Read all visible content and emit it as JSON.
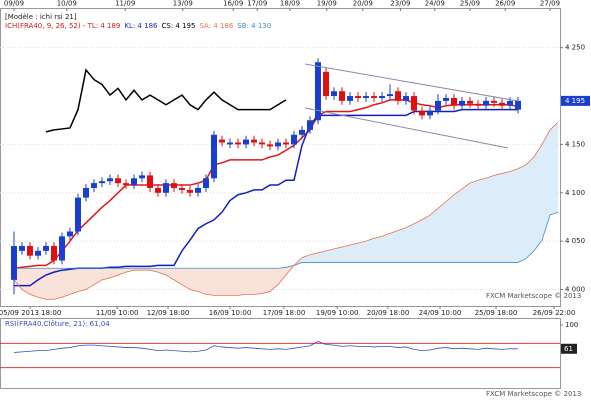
{
  "chart_data": {
    "type": "candlestick",
    "model_label": "[Modèle : ichi rsi 21]",
    "legend_items": [
      {
        "text": "ICH(FRA40, 9, 26, 52) - TL: 4 189",
        "color": "#d01818"
      },
      {
        "text": "KL: 4 186",
        "color": "#1428c8"
      },
      {
        "text": "CS: 4 195",
        "color": "#000000"
      },
      {
        "text": "SA: 4 186",
        "color": "#e8704a"
      },
      {
        "text": "SB: 4 130",
        "color": "#3c8ccc"
      }
    ],
    "watermark": "FXCM Marketscope © 2013",
    "xlim": [
      -1.75,
      68.25
    ],
    "ylim": [
      3983,
      4291
    ],
    "yticks": [
      {
        "value": 4250,
        "label": "4 250"
      },
      {
        "value": 4150,
        "label": "4 150"
      },
      {
        "value": 4100,
        "label": "4 100"
      },
      {
        "value": 4050,
        "label": "4 050"
      },
      {
        "value": 4000,
        "label": "4 000"
      }
    ],
    "grid": true,
    "last_price_label": "4 195",
    "top_xticks": [
      {
        "value": 0,
        "label": "09/09"
      },
      {
        "value": 6.6,
        "label": "10/09"
      },
      {
        "value": 13.9,
        "label": "11/09"
      },
      {
        "value": 21.1,
        "label": "13/09"
      },
      {
        "value": 27.4,
        "label": "16/09"
      },
      {
        "value": 30.4,
        "label": "17/09"
      },
      {
        "value": 34.5,
        "label": "18/09"
      },
      {
        "value": 39.1,
        "label": "19/09"
      },
      {
        "value": 43.6,
        "label": "20/09"
      },
      {
        "value": 48.3,
        "label": "23/09"
      },
      {
        "value": 52.6,
        "label": "24/09"
      },
      {
        "value": 57,
        "label": "25/09"
      },
      {
        "value": 61.4,
        "label": "26/09"
      },
      {
        "value": 67,
        "label": "27/09"
      }
    ],
    "bottom_xticks": [
      {
        "value": 2,
        "label": "05/09 2013 18:00"
      },
      {
        "value": 12.9,
        "label": "11/09 10:00"
      },
      {
        "value": 19.25,
        "label": "12/09 18:00"
      },
      {
        "value": 27,
        "label": "16/09 10:00"
      },
      {
        "value": 33.75,
        "label": "17/09 18:00"
      },
      {
        "value": 40.4,
        "label": "19/09 10:00"
      },
      {
        "value": 46.75,
        "label": "20/09 18:00"
      },
      {
        "value": 53.25,
        "label": "24/09 10:00"
      },
      {
        "value": 60.25,
        "label": "25/09 18:00"
      },
      {
        "value": 67.5,
        "label": "26/09 22:00"
      }
    ],
    "up_color": "#1a3fd0",
    "down_color": "#e01010",
    "open": [
      4010,
      4040,
      4045,
      4035,
      4040,
      4045,
      4030,
      4055,
      4060,
      4095,
      4105,
      4110,
      4112,
      4115,
      4110,
      4108,
      4115,
      4118,
      4105,
      4100,
      4110,
      4105,
      4103,
      4100,
      4105,
      4115,
      4155,
      4150,
      4152,
      4150,
      4155,
      4152,
      4150,
      4148,
      4152,
      4150,
      4160,
      4165,
      4175,
      4225,
      4200,
      4205,
      4195,
      4200,
      4198,
      4200,
      4198,
      4200,
      4205,
      4195,
      4200,
      4185,
      4180,
      4185,
      4195,
      4198,
      4190,
      4195,
      4192,
      4190,
      4195,
      4193,
      4190,
      4186,
      null,
      null,
      null,
      null,
      null
    ],
    "high": [
      4060,
      4049,
      4049,
      4044,
      4049,
      4049,
      4059,
      4064,
      4099,
      4109,
      4114,
      4116,
      4119,
      4119,
      4114,
      4119,
      4122,
      4122,
      4109,
      4114,
      4114,
      4109,
      4107,
      4109,
      4119,
      4164,
      4159,
      4156,
      4156,
      4159,
      4159,
      4156,
      4154,
      4156,
      4156,
      4164,
      4169,
      4179,
      4239,
      4229,
      4209,
      4209,
      4204,
      4204,
      4204,
      4204,
      4204,
      4212,
      4209,
      4204,
      4204,
      4189,
      4189,
      4202,
      4202,
      4202,
      4199,
      4199,
      4196,
      4199,
      4199,
      4197,
      4199,
      4199,
      null,
      null,
      null,
      null,
      null
    ],
    "low": [
      3995,
      4036,
      4031,
      4031,
      4036,
      4026,
      4026,
      4051,
      4056,
      4091,
      4101,
      4106,
      4108,
      4106,
      4104,
      4104,
      4111,
      4101,
      4096,
      4096,
      4101,
      4099,
      4096,
      4096,
      4101,
      4111,
      4148,
      4146,
      4146,
      4146,
      4148,
      4146,
      4144,
      4144,
      4146,
      4146,
      4156,
      4161,
      4171,
      4196,
      4196,
      4191,
      4191,
      4194,
      4194,
      4194,
      4194,
      4196,
      4191,
      4191,
      4181,
      4176,
      4176,
      4181,
      4191,
      4186,
      4186,
      4188,
      4186,
      4186,
      4189,
      4186,
      4186,
      4182,
      null,
      null,
      null,
      null,
      null
    ],
    "close": [
      4045,
      4045,
      4035,
      4040,
      4045,
      4030,
      4055,
      4060,
      4095,
      4105,
      4110,
      4112,
      4115,
      4110,
      4108,
      4115,
      4118,
      4105,
      4100,
      4110,
      4105,
      4103,
      4100,
      4105,
      4115,
      4160,
      4152,
      4152,
      4150,
      4155,
      4152,
      4150,
      4148,
      4152,
      4150,
      4160,
      4165,
      4175,
      4235,
      4200,
      4205,
      4195,
      4200,
      4198,
      4200,
      4198,
      4200,
      4202,
      4195,
      4200,
      4185,
      4180,
      4185,
      4195,
      4198,
      4190,
      4195,
      4192,
      4190,
      4195,
      4193,
      4190,
      4195,
      4195,
      null,
      null,
      null,
      null,
      null
    ],
    "cloud_colors": {
      "bear": "#f9e2d9",
      "bull": "#dcedf9"
    },
    "lines": [
      {
        "color": "#e01818",
        "width": 1.5,
        "values": [
          4022,
          4023,
          4024,
          4025,
          4025,
          4030,
          4040,
          4050,
          4061,
          4069,
          4077,
          4085,
          4092,
          4100,
          4108,
          4108,
          4108,
          4108,
          4108,
          4108,
          4108,
          4108,
          4108,
          4110,
          4113,
          4129,
          4131,
          4134,
          4134,
          4134,
          4134,
          4134,
          4137,
          4139,
          4144,
          4149,
          4157,
          4165,
          4180,
          4184,
          4184,
          4184,
          4184,
          4186,
          4188,
          4191,
          4193,
          4196,
          4196,
          4196,
          4193,
          4191,
          4190,
          4188,
          4190,
          4191,
          4191,
          4191,
          4191,
          4191,
          4191,
          4191,
          4191,
          4189,
          null,
          null,
          null,
          null,
          null
        ]
      },
      {
        "color": "#1020c0",
        "width": 1.5,
        "values": [
          4004,
          4004,
          4004,
          4010,
          4015,
          4018,
          4020,
          4021,
          4022,
          4022,
          4022,
          4022,
          4023,
          4023,
          4024,
          4024,
          4024,
          4024,
          4025,
          4025,
          4025,
          4040,
          4051,
          4063,
          4068,
          4072,
          4080,
          4092,
          4098,
          4100,
          4103,
          4103,
          4108,
          4108,
          4113,
          4113,
          4149,
          4170,
          4180,
          4180,
          4180,
          4180,
          4180,
          4180,
          4180,
          4180,
          4180,
          4180,
          4180,
          4180,
          4184,
          4184,
          4184,
          4184,
          4184,
          4184,
          4186,
          4186,
          4186,
          4186,
          4186,
          4186,
          4186,
          4186,
          null,
          null,
          null,
          null,
          null
        ]
      },
      {
        "color": "#000000",
        "width": 1.5,
        "values": [
          null,
          null,
          null,
          null,
          4163,
          4165,
          4166,
          4167,
          4186,
          4227,
          4217,
          4212,
          4201,
          4208,
          4196,
          4206,
          4196,
          4201,
          4196,
          4191,
          4196,
          4201,
          4191,
          4186,
          4196,
          4204,
          4196,
          4191,
          4186,
          4186,
          4186,
          4186,
          4186,
          4191,
          4196,
          null,
          null,
          null,
          null,
          null,
          null,
          null,
          null,
          null,
          null,
          null,
          null,
          null,
          null,
          null,
          null,
          null,
          null,
          null,
          null,
          null,
          null,
          null,
          null,
          null,
          null,
          null,
          null,
          null,
          null,
          null,
          null,
          null,
          null
        ]
      },
      {
        "color": "#e8704a",
        "width": 0.8,
        "role": "senkou_a",
        "values": [
          4010,
          4000,
          3995,
          3992,
          3990,
          3990,
          3992,
          3995,
          3998,
          4000,
          4005,
          4010,
          4012,
          4015,
          4018,
          4020,
          4020,
          4020,
          4018,
          4015,
          4010,
          4005,
          4000,
          3998,
          3995,
          3994,
          3994,
          3994,
          3994,
          3995,
          3995,
          3996,
          3998,
          4005,
          4015,
          4025,
          4033,
          4036,
          4038,
          4040,
          4042,
          4044,
          4046,
          4048,
          4050,
          4053,
          4055,
          4058,
          4061,
          4064,
          4068,
          4072,
          4077,
          4084,
          4091,
          4098,
          4104,
          4110,
          4113,
          4115,
          4118,
          4120,
          4122,
          4125,
          4129,
          4137,
          4150,
          4165,
          4173
        ]
      },
      {
        "color": "#3c8ccc",
        "width": 0.8,
        "role": "senkou_b",
        "values": [
          4022,
          4022,
          4022,
          4022,
          4022,
          4022,
          4022,
          4022,
          4022,
          4022,
          4022,
          4022,
          4022,
          4022,
          4022,
          4022,
          4022,
          4022,
          4022,
          4022,
          4022,
          4022,
          4022,
          4022,
          4022,
          4022,
          4022,
          4022,
          4022,
          4022,
          4022,
          4022,
          4022,
          4022,
          4023,
          4025,
          4028,
          4028,
          4028,
          4028,
          4028,
          4028,
          4028,
          4028,
          4028,
          4028,
          4028,
          4028,
          4028,
          4028,
          4028,
          4028,
          4028,
          4028,
          4028,
          4028,
          4028,
          4028,
          4028,
          4028,
          4028,
          4028,
          4028,
          4028,
          4032,
          4040,
          4051,
          4077,
          4080
        ]
      }
    ],
    "rsi": {
      "title": "RSI(FRA40.Clôture, 21): 61,04",
      "color": "#3a4ac8",
      "ylim": [
        0,
        100
      ],
      "yticks": [
        100
      ],
      "levels": [
        70,
        30
      ],
      "level_color": "#d02020",
      "last_label": "61",
      "values": [
        55,
        56,
        57,
        58,
        58,
        60,
        62,
        63,
        66,
        67,
        67,
        66,
        65,
        64,
        63,
        63,
        62,
        60,
        58,
        59,
        58,
        57,
        56,
        57,
        59,
        66,
        64,
        63,
        62,
        63,
        62,
        61,
        60,
        61,
        60,
        62,
        64,
        66,
        73,
        68,
        67,
        65,
        66,
        65,
        65,
        64,
        65,
        65,
        63,
        64,
        60,
        58,
        59,
        62,
        63,
        61,
        62,
        61,
        60,
        62,
        61,
        60,
        61,
        61.04,
        null,
        null,
        null,
        null,
        null
      ]
    }
  }
}
